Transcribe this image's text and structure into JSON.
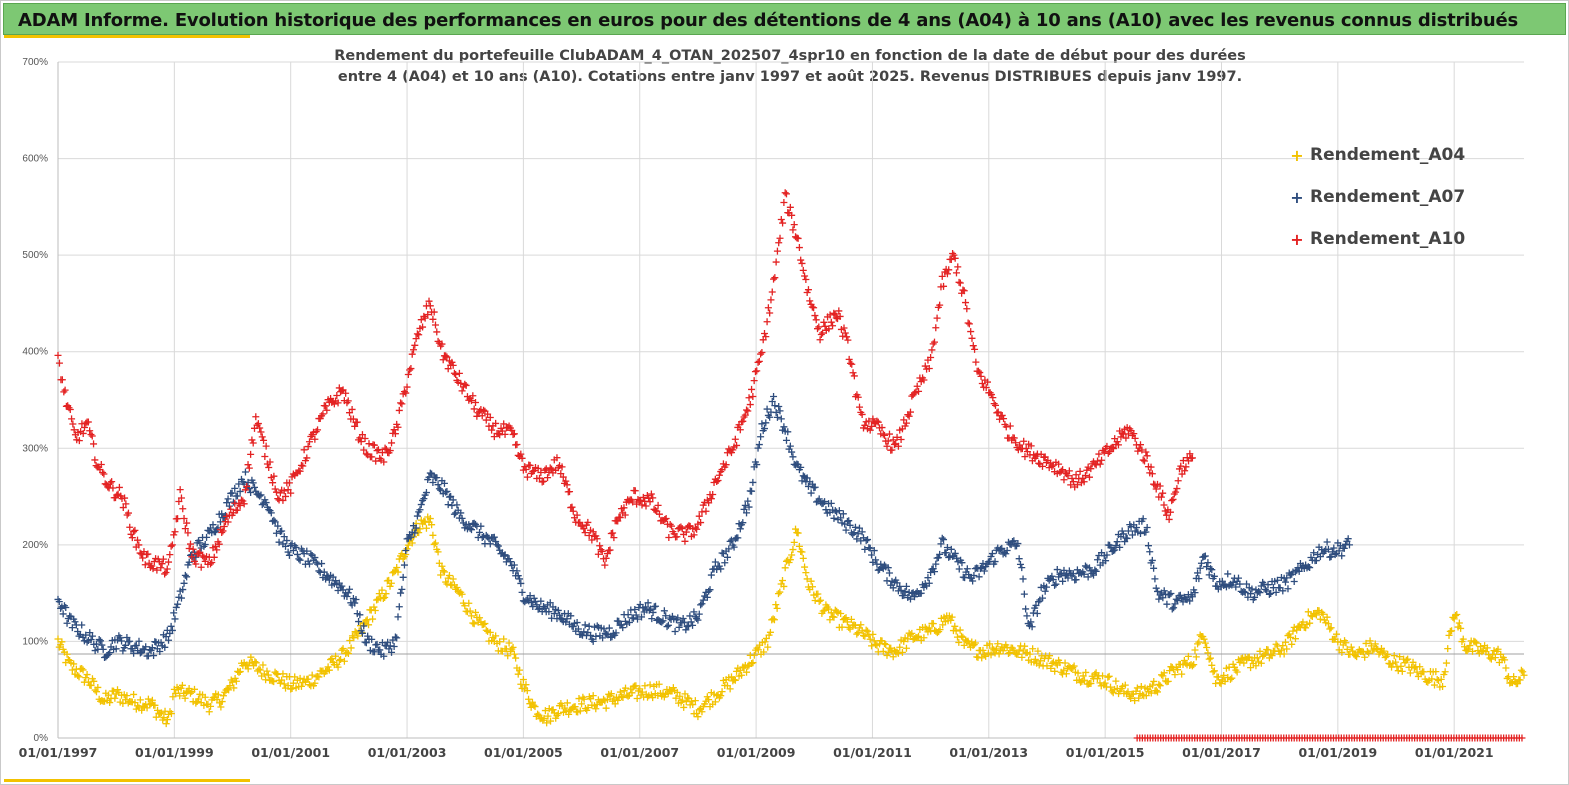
{
  "banner": {
    "title": "ADAM Informe. Evolution historique des performances en euros pour des détentions de 4 ans (A04) à 10 ans (A10) avec les revenus connus distribués"
  },
  "chart_data": {
    "type": "scatter",
    "title_line1": "Rendement du portefeuille ClubADAM_4_OTAN_202507_4spr10  en fonction de la date de début pour des durées",
    "title_line2": "entre 4 (A04) et 10 ans (A10). Cotations entre janv 1997 et août 2025. Revenus DISTRIBUES depuis janv 1997.",
    "xlim": [
      1997,
      2022.2
    ],
    "ylim": [
      0,
      700
    ],
    "x_ticks": [
      "01/01/1997",
      "01/01/1999",
      "01/01/2001",
      "01/01/2003",
      "01/01/2005",
      "01/01/2007",
      "01/01/2009",
      "01/01/2011",
      "01/01/2013",
      "01/01/2015",
      "01/01/2017",
      "01/01/2019",
      "01/01/2021"
    ],
    "y_ticks": [
      "0%",
      "100%",
      "200%",
      "300%",
      "400%",
      "500%",
      "600%",
      "700%"
    ],
    "reference_line": 87,
    "grid": true,
    "legend_position": "top-right",
    "series": [
      {
        "name": "Rendement_A04",
        "color": "#f2c200",
        "points": [
          [
            1997.0,
            100
          ],
          [
            1997.2,
            75
          ],
          [
            1997.5,
            62
          ],
          [
            1997.8,
            38
          ],
          [
            1998.0,
            45
          ],
          [
            1998.3,
            38
          ],
          [
            1998.6,
            35
          ],
          [
            1998.8,
            22
          ],
          [
            1998.9,
            18
          ],
          [
            1999.0,
            48
          ],
          [
            1999.3,
            45
          ],
          [
            1999.6,
            35
          ],
          [
            1999.8,
            40
          ],
          [
            2000.0,
            55
          ],
          [
            2000.2,
            80
          ],
          [
            2000.5,
            70
          ],
          [
            2000.8,
            62
          ],
          [
            2001.0,
            55
          ],
          [
            2001.3,
            58
          ],
          [
            2001.6,
            70
          ],
          [
            2001.9,
            85
          ],
          [
            2002.2,
            110
          ],
          [
            2002.5,
            140
          ],
          [
            2002.8,
            170
          ],
          [
            2003.0,
            200
          ],
          [
            2003.2,
            220
          ],
          [
            2003.4,
            225
          ],
          [
            2003.6,
            170
          ],
          [
            2003.9,
            150
          ],
          [
            2004.2,
            120
          ],
          [
            2004.5,
            100
          ],
          [
            2004.8,
            90
          ],
          [
            2005.0,
            55
          ],
          [
            2005.2,
            30
          ],
          [
            2005.4,
            22
          ],
          [
            2005.6,
            30
          ],
          [
            2006.0,
            35
          ],
          [
            2006.4,
            38
          ],
          [
            2006.8,
            45
          ],
          [
            2007.2,
            50
          ],
          [
            2007.6,
            45
          ],
          [
            2008.0,
            30
          ],
          [
            2008.3,
            45
          ],
          [
            2008.6,
            60
          ],
          [
            2008.9,
            80
          ],
          [
            2009.2,
            100
          ],
          [
            2009.5,
            170
          ],
          [
            2009.7,
            215
          ],
          [
            2009.9,
            160
          ],
          [
            2010.2,
            130
          ],
          [
            2010.5,
            120
          ],
          [
            2010.8,
            110
          ],
          [
            2011.1,
            95
          ],
          [
            2011.4,
            90
          ],
          [
            2011.7,
            105
          ],
          [
            2012.0,
            110
          ],
          [
            2012.3,
            125
          ],
          [
            2012.6,
            95
          ],
          [
            2012.9,
            90
          ],
          [
            2013.2,
            95
          ],
          [
            2013.5,
            90
          ],
          [
            2013.8,
            85
          ],
          [
            2014.2,
            75
          ],
          [
            2014.6,
            65
          ],
          [
            2015.0,
            60
          ],
          [
            2015.3,
            48
          ],
          [
            2015.6,
            45
          ],
          [
            2015.9,
            55
          ],
          [
            2016.2,
            70
          ],
          [
            2016.5,
            80
          ],
          [
            2016.7,
            110
          ],
          [
            2016.9,
            60
          ],
          [
            2017.2,
            70
          ],
          [
            2017.5,
            80
          ],
          [
            2017.8,
            85
          ],
          [
            2018.1,
            95
          ],
          [
            2018.4,
            120
          ],
          [
            2018.7,
            130
          ],
          [
            2019.0,
            100
          ],
          [
            2019.3,
            85
          ],
          [
            2019.6,
            95
          ],
          [
            2019.9,
            80
          ],
          [
            2020.2,
            75
          ],
          [
            2020.5,
            65
          ],
          [
            2020.8,
            60
          ],
          [
            2021.0,
            130
          ],
          [
            2021.2,
            95
          ],
          [
            2021.5,
            90
          ],
          [
            2021.8,
            85
          ],
          [
            2022.0,
            55
          ],
          [
            2022.2,
            65
          ]
        ]
      },
      {
        "name": "Rendement_A07",
        "color": "#2e4d7e",
        "points": [
          [
            1997.0,
            145
          ],
          [
            1997.2,
            120
          ],
          [
            1997.5,
            105
          ],
          [
            1997.8,
            90
          ],
          [
            1998.0,
            100
          ],
          [
            1998.3,
            95
          ],
          [
            1998.6,
            90
          ],
          [
            1998.9,
            105
          ],
          [
            1999.1,
            145
          ],
          [
            1999.3,
            190
          ],
          [
            1999.6,
            210
          ],
          [
            1999.9,
            240
          ],
          [
            2000.2,
            270
          ],
          [
            2000.4,
            255
          ],
          [
            2000.6,
            245
          ],
          [
            2000.8,
            210
          ],
          [
            2001.0,
            195
          ],
          [
            2001.3,
            185
          ],
          [
            2001.6,
            170
          ],
          [
            2001.9,
            155
          ],
          [
            2002.1,
            140
          ],
          [
            2002.3,
            100
          ],
          [
            2002.6,
            90
          ],
          [
            2002.8,
            100
          ],
          [
            2003.0,
            200
          ],
          [
            2003.2,
            230
          ],
          [
            2003.4,
            270
          ],
          [
            2003.6,
            260
          ],
          [
            2003.9,
            230
          ],
          [
            2004.2,
            215
          ],
          [
            2004.5,
            200
          ],
          [
            2004.8,
            180
          ],
          [
            2005.0,
            150
          ],
          [
            2005.3,
            135
          ],
          [
            2005.6,
            130
          ],
          [
            2005.9,
            115
          ],
          [
            2006.2,
            108
          ],
          [
            2006.5,
            110
          ],
          [
            2006.8,
            125
          ],
          [
            2007.1,
            135
          ],
          [
            2007.4,
            125
          ],
          [
            2007.7,
            115
          ],
          [
            2008.0,
            125
          ],
          [
            2008.3,
            175
          ],
          [
            2008.6,
            200
          ],
          [
            2008.9,
            250
          ],
          [
            2009.1,
            320
          ],
          [
            2009.3,
            350
          ],
          [
            2009.5,
            320
          ],
          [
            2009.7,
            280
          ],
          [
            2009.9,
            260
          ],
          [
            2010.2,
            240
          ],
          [
            2010.5,
            225
          ],
          [
            2010.8,
            210
          ],
          [
            2011.1,
            180
          ],
          [
            2011.4,
            160
          ],
          [
            2011.7,
            145
          ],
          [
            2012.0,
            170
          ],
          [
            2012.2,
            200
          ],
          [
            2012.4,
            185
          ],
          [
            2012.7,
            165
          ],
          [
            2012.9,
            175
          ],
          [
            2013.2,
            195
          ],
          [
            2013.5,
            200
          ],
          [
            2013.7,
            110
          ],
          [
            2013.9,
            150
          ],
          [
            2014.2,
            170
          ],
          [
            2014.5,
            170
          ],
          [
            2014.8,
            175
          ],
          [
            2015.1,
            195
          ],
          [
            2015.4,
            215
          ],
          [
            2015.7,
            220
          ],
          [
            2015.9,
            150
          ],
          [
            2016.2,
            140
          ],
          [
            2016.5,
            145
          ],
          [
            2016.7,
            190
          ],
          [
            2016.9,
            160
          ],
          [
            2017.2,
            165
          ],
          [
            2017.5,
            150
          ],
          [
            2017.8,
            155
          ],
          [
            2018.1,
            160
          ],
          [
            2018.4,
            175
          ],
          [
            2018.7,
            195
          ],
          [
            2019.0,
            195
          ],
          [
            2019.2,
            200
          ]
        ]
      },
      {
        "name": "Rendement_A10",
        "color": "#e32222",
        "points": [
          [
            1997.0,
            395
          ],
          [
            1997.1,
            360
          ],
          [
            1997.3,
            310
          ],
          [
            1997.5,
            325
          ],
          [
            1997.7,
            280
          ],
          [
            1997.9,
            260
          ],
          [
            1998.1,
            250
          ],
          [
            1998.3,
            210
          ],
          [
            1998.5,
            185
          ],
          [
            1998.7,
            180
          ],
          [
            1998.9,
            175
          ],
          [
            1999.1,
            250
          ],
          [
            1999.3,
            190
          ],
          [
            1999.6,
            180
          ],
          [
            1999.9,
            225
          ],
          [
            2000.2,
            250
          ],
          [
            2000.4,
            330
          ],
          [
            2000.6,
            290
          ],
          [
            2000.8,
            250
          ],
          [
            2001.0,
            260
          ],
          [
            2001.3,
            300
          ],
          [
            2001.6,
            340
          ],
          [
            2001.9,
            360
          ],
          [
            2002.1,
            325
          ],
          [
            2002.3,
            300
          ],
          [
            2002.6,
            290
          ],
          [
            2002.8,
            315
          ],
          [
            2003.0,
            370
          ],
          [
            2003.2,
            420
          ],
          [
            2003.4,
            450
          ],
          [
            2003.6,
            400
          ],
          [
            2003.9,
            370
          ],
          [
            2004.2,
            340
          ],
          [
            2004.5,
            320
          ],
          [
            2004.8,
            315
          ],
          [
            2005.0,
            280
          ],
          [
            2005.3,
            270
          ],
          [
            2005.6,
            285
          ],
          [
            2005.9,
            230
          ],
          [
            2006.2,
            210
          ],
          [
            2006.4,
            180
          ],
          [
            2006.6,
            225
          ],
          [
            2006.9,
            250
          ],
          [
            2007.2,
            245
          ],
          [
            2007.5,
            215
          ],
          [
            2007.8,
            210
          ],
          [
            2008.0,
            220
          ],
          [
            2008.3,
            265
          ],
          [
            2008.6,
            300
          ],
          [
            2008.9,
            350
          ],
          [
            2009.1,
            400
          ],
          [
            2009.3,
            470
          ],
          [
            2009.5,
            560
          ],
          [
            2009.7,
            520
          ],
          [
            2009.9,
            460
          ],
          [
            2010.1,
            420
          ],
          [
            2010.4,
            440
          ],
          [
            2010.6,
            400
          ],
          [
            2010.8,
            330
          ],
          [
            2011.1,
            320
          ],
          [
            2011.4,
            300
          ],
          [
            2011.7,
            350
          ],
          [
            2012.0,
            390
          ],
          [
            2012.2,
            470
          ],
          [
            2012.4,
            500
          ],
          [
            2012.6,
            450
          ],
          [
            2012.8,
            380
          ],
          [
            2013.0,
            360
          ],
          [
            2013.3,
            320
          ],
          [
            2013.6,
            300
          ],
          [
            2013.9,
            290
          ],
          [
            2014.2,
            280
          ],
          [
            2014.5,
            265
          ],
          [
            2014.8,
            280
          ],
          [
            2015.1,
            300
          ],
          [
            2015.4,
            320
          ],
          [
            2015.7,
            290
          ],
          [
            2015.9,
            260
          ],
          [
            2016.1,
            230
          ],
          [
            2016.3,
            280
          ],
          [
            2016.5,
            290
          ]
        ]
      }
    ]
  }
}
